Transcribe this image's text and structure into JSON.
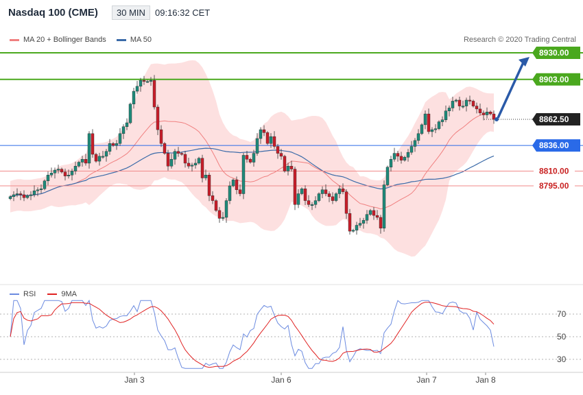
{
  "header": {
    "title": "Nasdaq 100 (CME)",
    "timeframe": "30 MIN",
    "time": "09:16:32 CET"
  },
  "legend": {
    "bb_label": "MA 20 + Bollinger Bands",
    "ma50_label": "MA 50",
    "copyright": "Research © 2020 Trading Central"
  },
  "colors": {
    "bb_fill": "#fde0e0",
    "bb_line": "#f08080",
    "ma50": "#3a6aa8",
    "up": "#1f8a7a",
    "down": "#c81e2a",
    "resistance": "#4aa81e",
    "support": "#f08a8a",
    "pivot": "#2a6ae8",
    "arrow": "#2a5aa8",
    "rsi": "#6a8ae0",
    "rsi_ma": "#e02020"
  },
  "rsi_legend": {
    "rsi": "RSI",
    "ma": "9MA"
  },
  "chart_data": [
    {
      "type": "candlestick",
      "title": "Nasdaq 100 (CME)",
      "ylim": [
        8700,
        8945
      ],
      "x_ticks": [
        "Jan 3",
        "Jan 6",
        "Jan 7",
        "Jan 8"
      ],
      "levels": [
        {
          "value": 8930.0,
          "label": "8930.00",
          "kind": "resistance"
        },
        {
          "value": 8903.0,
          "label": "8903.00",
          "kind": "resistance"
        },
        {
          "value": 8862.5,
          "label": "8862.50",
          "kind": "last"
        },
        {
          "value": 8836.0,
          "label": "8836.00",
          "kind": "pivot"
        },
        {
          "value": 8810.0,
          "label": "8810.00",
          "kind": "support"
        },
        {
          "value": 8795.0,
          "label": "8795.00",
          "kind": "support"
        }
      ],
      "closes": [
        8784,
        8786,
        8787,
        8786,
        8783,
        8785,
        8786,
        8790,
        8791,
        8792,
        8800,
        8806,
        8808,
        8811,
        8812,
        8809,
        8805,
        8806,
        8810,
        8815,
        8819,
        8822,
        8818,
        8848,
        8827,
        8820,
        8825,
        8825,
        8830,
        8838,
        8836,
        8838,
        8848,
        8855,
        8859,
        8878,
        8891,
        8896,
        8902,
        8901,
        8901,
        8902,
        8875,
        8852,
        8838,
        8828,
        8815,
        8822,
        8830,
        8828,
        8827,
        8818,
        8815,
        8816,
        8818,
        8823,
        8803,
        8806,
        8785,
        8780,
        8770,
        8762,
        8763,
        8780,
        8795,
        8801,
        8791,
        8787,
        8826,
        8822,
        8819,
        8828,
        8843,
        8852,
        8849,
        8838,
        8845,
        8835,
        8828,
        8825,
        8810,
        8815,
        8812,
        8776,
        8787,
        8792,
        8780,
        8776,
        8776,
        8780,
        8787,
        8791,
        8787,
        8784,
        8780,
        8787,
        8792,
        8789,
        8767,
        8749,
        8750,
        8755,
        8757,
        8760,
        8766,
        8770,
        8765,
        8763,
        8752,
        8796,
        8814,
        8822,
        8828,
        8825,
        8821,
        8824,
        8829,
        8835,
        8841,
        8848,
        8857,
        8868,
        8850,
        8852,
        8853,
        8860,
        8862,
        8871,
        8874,
        8881,
        8882,
        8876,
        8876,
        8882,
        8881,
        8876,
        8873,
        8869,
        8867,
        8870,
        8868,
        8862.5
      ],
      "rsi": {
        "ylim": [
          20,
          80
        ],
        "ticks": [
          30,
          50,
          70
        ]
      }
    }
  ]
}
